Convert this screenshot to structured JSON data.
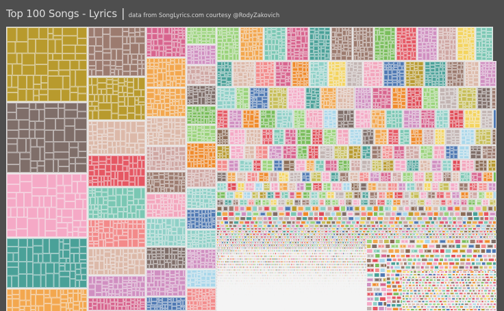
{
  "header": {
    "title": "Top 100 Songs - Lyrics",
    "divider": "|",
    "subtitle": "data from SongLyrics.com courtesy @RodyZakovich"
  },
  "chart_data": {
    "type": "treemap",
    "title": "Top 100 Songs - Lyrics",
    "subtitle": "data from SongLyrics.com courtesy @RodyZakovich",
    "mark_colors": [
      "#b89a2d",
      "#7f6e69",
      "#f5a9c6",
      "#4aa198",
      "#f3a74e",
      "#9c7b6f",
      "#dcb9a9",
      "#e55763",
      "#7ac7b3",
      "#f38a8a",
      "#d08fc1",
      "#d8648e",
      "#f08a2a",
      "#79bd5b",
      "#8fd0c7",
      "#cfa7a3",
      "#e04a55",
      "#9ad37b",
      "#f4d45e",
      "#c2b4b2",
      "#f3a6bd",
      "#4f79b3",
      "#a9d7ea",
      "#c6bd55",
      "#8c6c56"
    ],
    "cell_border_color": "#f4f4f4",
    "background_color": "#4e4e4e",
    "legend": "none"
  }
}
